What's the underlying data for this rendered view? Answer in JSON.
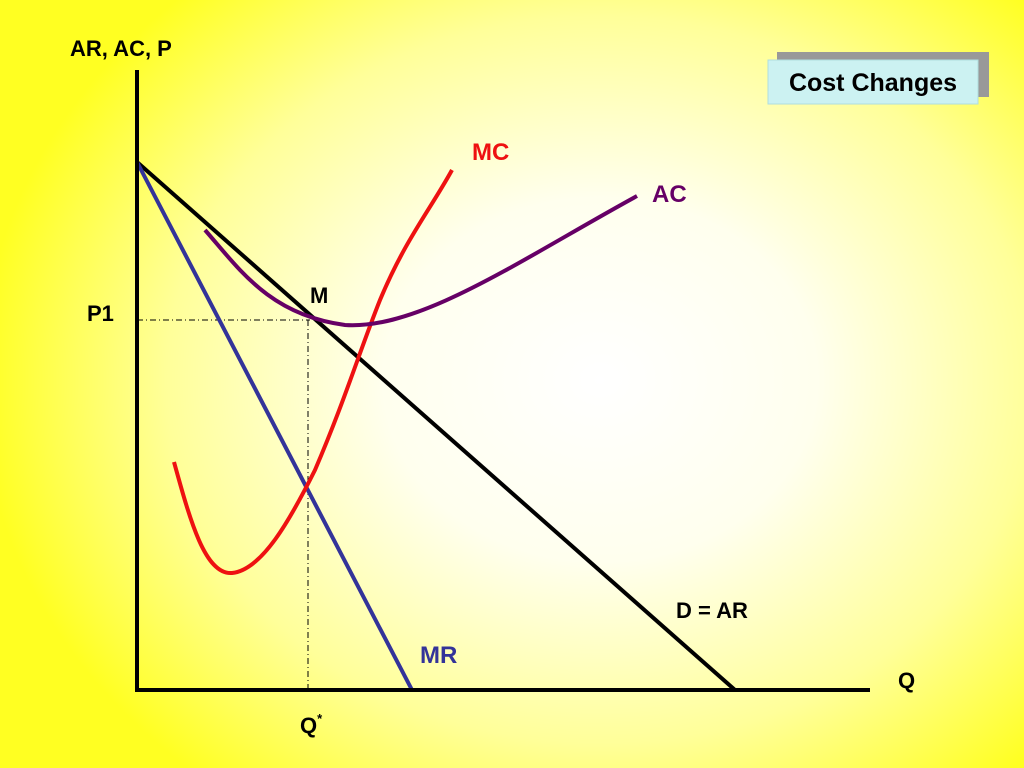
{
  "title": "Cost Changes",
  "axes": {
    "y_label": "AR, AC, P",
    "x_label": "Q"
  },
  "curves": {
    "mc": "MC",
    "ac": "AC",
    "mr": "MR",
    "demand": "D = AR"
  },
  "points": {
    "m": "M",
    "p1": "P1",
    "q_star": {
      "text": "Q",
      "superscript": "*"
    }
  }
}
